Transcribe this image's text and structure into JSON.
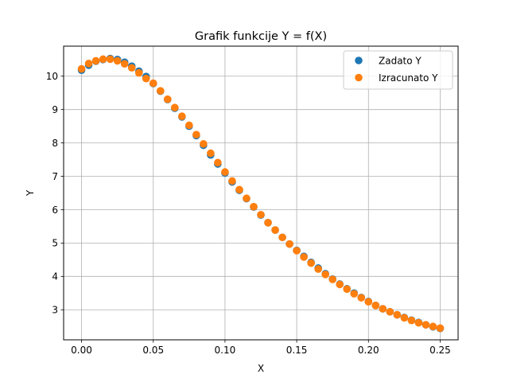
{
  "chart_data": {
    "type": "scatter",
    "title": "Grafik funkcije Y = f(X)",
    "xlabel": "X",
    "ylabel": "Y",
    "xlim": [
      -0.0125,
      0.2625
    ],
    "ylim": [
      2.1,
      10.9
    ],
    "xticks": [
      0.0,
      0.05,
      0.1,
      0.15,
      0.2,
      0.25
    ],
    "xtick_labels": [
      "0.00",
      "0.05",
      "0.10",
      "0.15",
      "0.20",
      "0.25"
    ],
    "yticks": [
      3,
      4,
      5,
      6,
      7,
      8,
      9,
      10
    ],
    "ytick_labels": [
      "3",
      "4",
      "5",
      "6",
      "7",
      "8",
      "9",
      "10"
    ],
    "grid": true,
    "legend_position": "top-right",
    "x": [
      0.0,
      0.005,
      0.01,
      0.015,
      0.02,
      0.025,
      0.03,
      0.035,
      0.04,
      0.045,
      0.05,
      0.055,
      0.06,
      0.065,
      0.07,
      0.075,
      0.08,
      0.085,
      0.09,
      0.095,
      0.1,
      0.105,
      0.11,
      0.115,
      0.12,
      0.125,
      0.13,
      0.135,
      0.14,
      0.145,
      0.15,
      0.155,
      0.16,
      0.165,
      0.17,
      0.175,
      0.18,
      0.185,
      0.19,
      0.195,
      0.2,
      0.205,
      0.21,
      0.215,
      0.22,
      0.225,
      0.23,
      0.235,
      0.24,
      0.245,
      0.25
    ],
    "series": [
      {
        "name": "Zadato Y",
        "color": "#1f77b4",
        "values": [
          10.18,
          10.33,
          10.45,
          10.5,
          10.53,
          10.5,
          10.42,
          10.3,
          10.15,
          9.99,
          9.78,
          9.55,
          9.3,
          9.04,
          8.78,
          8.5,
          8.22,
          7.93,
          7.64,
          7.37,
          7.1,
          6.83,
          6.58,
          6.33,
          6.08,
          5.84,
          5.61,
          5.39,
          5.17,
          4.97,
          4.78,
          4.6,
          4.42,
          4.25,
          4.08,
          3.92,
          3.77,
          3.63,
          3.5,
          3.37,
          3.25,
          3.13,
          3.03,
          2.94,
          2.85,
          2.77,
          2.69,
          2.62,
          2.55,
          2.49,
          2.44
        ]
      },
      {
        "name": "Izracunato Y",
        "color": "#ff7f0e",
        "values": [
          10.22,
          10.38,
          10.46,
          10.51,
          10.51,
          10.46,
          10.37,
          10.25,
          10.1,
          9.93,
          9.79,
          9.56,
          9.31,
          9.06,
          8.8,
          8.53,
          8.25,
          7.97,
          7.69,
          7.41,
          7.13,
          6.86,
          6.6,
          6.34,
          6.09,
          5.85,
          5.61,
          5.39,
          5.17,
          4.97,
          4.77,
          4.58,
          4.4,
          4.22,
          4.06,
          3.91,
          3.76,
          3.62,
          3.48,
          3.36,
          3.24,
          3.13,
          3.03,
          2.94,
          2.85,
          2.76,
          2.68,
          2.61,
          2.55,
          2.5,
          2.45
        ]
      }
    ]
  }
}
